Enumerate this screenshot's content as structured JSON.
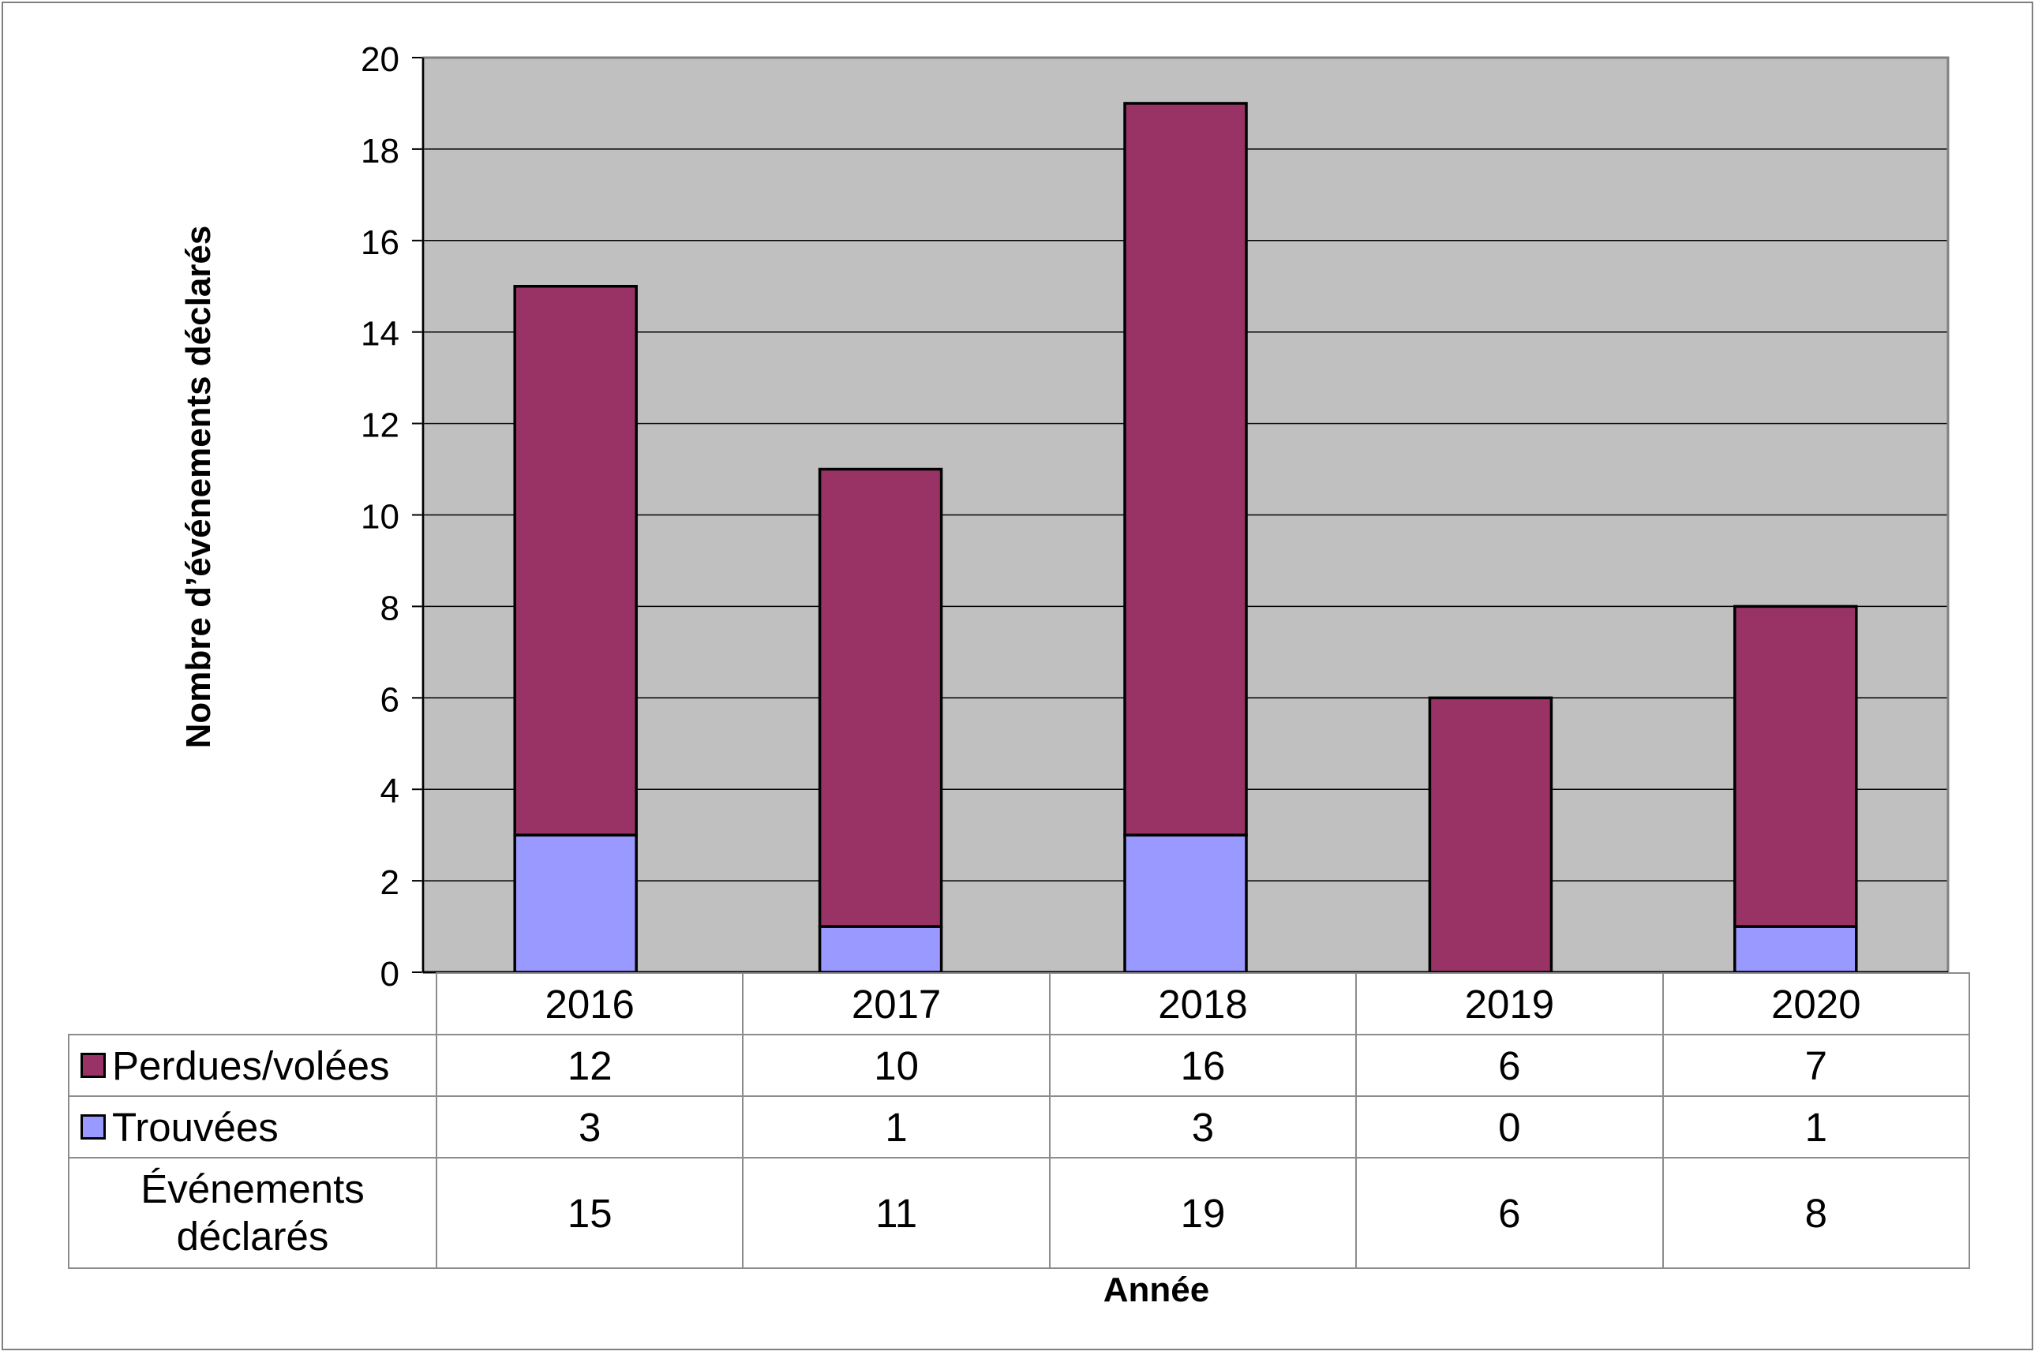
{
  "chart_data": {
    "type": "bar",
    "stacked": true,
    "categories": [
      "2016",
      "2017",
      "2018",
      "2019",
      "2020"
    ],
    "series": [
      {
        "name": "Trouvées",
        "values": [
          3,
          1,
          3,
          0,
          1
        ],
        "color": "#9999ff"
      },
      {
        "name": "Perdues/volées",
        "values": [
          12,
          10,
          16,
          6,
          7
        ],
        "color": "#993366"
      }
    ],
    "totals": {
      "label": "Événements déclarés",
      "values": [
        15,
        11,
        19,
        6,
        8
      ]
    },
    "xlabel": "Année",
    "ylabel": "Nombre d’événements déclarés",
    "ylim": [
      0,
      20
    ],
    "yticks": [
      0,
      2,
      4,
      6,
      8,
      10,
      12,
      14,
      16,
      18,
      20
    ],
    "grid": true,
    "plot_background": "#c0c0c0",
    "data_table": true
  }
}
